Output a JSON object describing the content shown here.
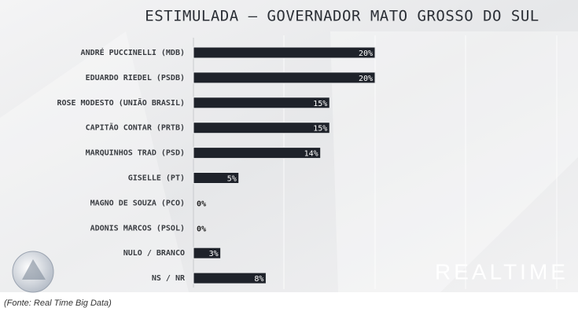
{
  "chart_data": {
    "type": "bar",
    "orientation": "horizontal",
    "title": "ESTIMULADA – GOVERNADOR MATO GROSSO DO SUL",
    "categories": [
      "ANDRÉ PUCCINELLI (MDB)",
      "EDUARDO RIEDEL (PSDB)",
      "ROSE MODESTO (UNIÃO BRASIL)",
      "CAPITÃO CONTAR (PRTB)",
      "MARQUINHOS TRAD (PSD)",
      "GISELLE (PT)",
      "MAGNO DE SOUZA (PCO)",
      "ADONIS MARCOS (PSOL)",
      "NULO / BRANCO",
      "NS / NR"
    ],
    "values": [
      20,
      20,
      15,
      15,
      14,
      5,
      0,
      0,
      3,
      8
    ],
    "value_labels": [
      "20%",
      "20%",
      "15%",
      "15%",
      "14%",
      "5%",
      "0%",
      "0%",
      "3%",
      "8%"
    ],
    "color": "#1e222a",
    "source": "(Fonte: Real Time Big Data)",
    "logo": "REALTIME"
  }
}
